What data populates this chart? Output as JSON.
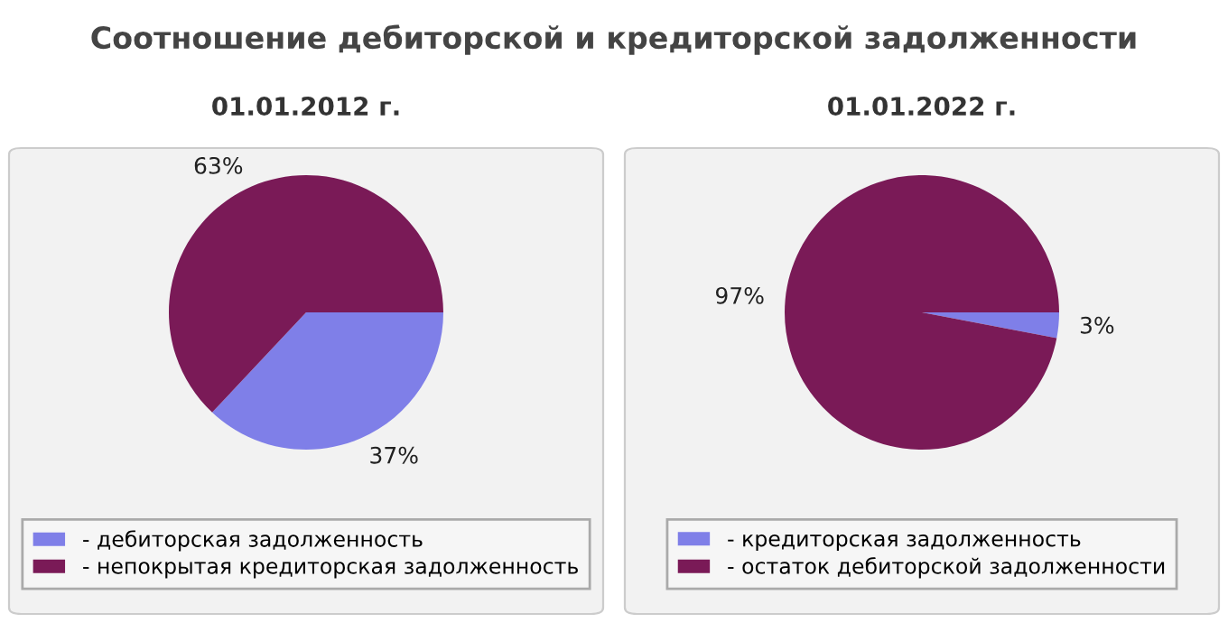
{
  "chart_data": [
    {
      "type": "pie",
      "title": "01.01.2012 г.",
      "annotations": [
        "Соотношение дебиторской и кредиторской задолженности"
      ],
      "categories": [
        "- дебиторская задолженность",
        "- непокрытая кредиторская задолженность"
      ],
      "values": [
        37,
        63
      ],
      "colors": [
        "#7f7fe8",
        "#7a1a57"
      ],
      "value_labels": [
        "37%",
        "63%"
      ],
      "legend": "bottom"
    },
    {
      "type": "pie",
      "title": "01.01.2022 г.",
      "categories": [
        "- кредиторская задолженность",
        "- остаток дебиторской задолженности"
      ],
      "values": [
        3,
        97
      ],
      "colors": [
        "#7f7fe8",
        "#7a1a57"
      ],
      "value_labels": [
        "3%",
        "97%"
      ],
      "legend": "bottom"
    }
  ]
}
